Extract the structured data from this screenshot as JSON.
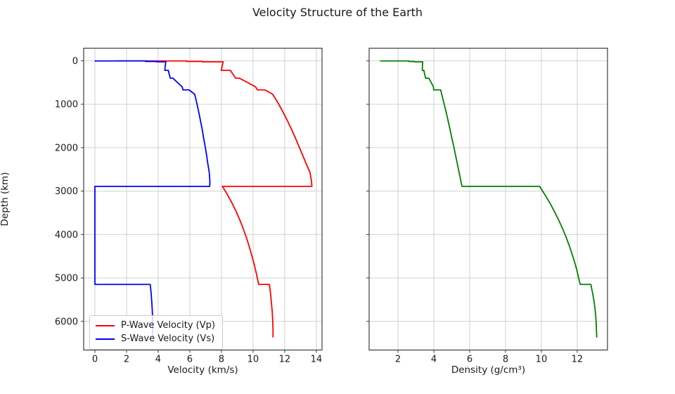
{
  "figure": {
    "title": "Velocity Structure of the Earth",
    "background_color": "#ffffff",
    "text_color": "#1a1a1a",
    "grid_color": "#d0d0d0",
    "spine_color": "#3c3c3c"
  },
  "legend": {
    "items": [
      {
        "label": "P-Wave Velocity (Vp)",
        "color": "#ff0000"
      },
      {
        "label": "S-Wave Velocity (Vs)",
        "color": "#0000ff"
      }
    ]
  },
  "chart_data": [
    {
      "type": "line",
      "title": "",
      "xlabel": "Velocity (km/s)",
      "ylabel": "Depth (km)",
      "xlim": [
        -0.71,
        14.36
      ],
      "ylim": [
        -290,
        6660
      ],
      "y_axis_inverted_depth": true,
      "grid": true,
      "x_ticks": [
        0,
        2,
        4,
        6,
        8,
        10,
        12,
        14
      ],
      "y_ticks": [
        0,
        1000,
        2000,
        3000,
        4000,
        5000,
        6000
      ],
      "show_y_tick_labels": true,
      "legend_position": "lower left",
      "series": [
        {
          "name": "P-Wave Velocity (Vp)",
          "color": "#ff0000",
          "x": [
            1.45,
            1.45,
            5.8,
            5.8,
            6.8,
            6.8,
            8.11,
            8.07,
            8.03,
            7.99,
            8.56,
            8.73,
            8.9,
            9.13,
            9.65,
            10.16,
            10.27,
            10.75,
            11.24,
            11.58,
            11.88,
            12.16,
            12.42,
            12.67,
            12.9,
            13.13,
            13.36,
            13.6,
            13.69,
            13.72,
            8.06,
            8.36,
            8.66,
            8.93,
            9.17,
            9.38,
            9.58,
            9.75,
            9.91,
            10.06,
            10.19,
            10.31,
            10.36,
            11.03,
            11.11,
            11.16,
            11.21,
            11.24,
            11.26,
            11.26
          ],
          "y": [
            0,
            3,
            3,
            15,
            15,
            24.4,
            24.4,
            80,
            150,
            220,
            220,
            310,
            400,
            400,
            500,
            600,
            670,
            670,
            771,
            971,
            1171,
            1371,
            1571,
            1771,
            1971,
            2171,
            2371,
            2571,
            2771,
            2891,
            2891,
            3071,
            3271,
            3471,
            3671,
            3871,
            4071,
            4271,
            4471,
            4671,
            4871,
            5071,
            5149.5,
            5149.5,
            5371,
            5571,
            5771,
            5971,
            6171,
            6371
          ]
        },
        {
          "name": "S-Wave Velocity (Vs)",
          "color": "#0000ff",
          "x": [
            0,
            0,
            3.2,
            3.2,
            3.9,
            3.9,
            4.49,
            4.46,
            4.44,
            4.42,
            4.64,
            4.7,
            4.77,
            4.93,
            5.22,
            5.52,
            5.57,
            5.95,
            6.31,
            6.44,
            6.56,
            6.67,
            6.78,
            6.87,
            6.97,
            7.06,
            7.14,
            7.23,
            7.27,
            7.26,
            0,
            0,
            0,
            0,
            0,
            0,
            0,
            0,
            0,
            0,
            0,
            0,
            0,
            3.5,
            3.56,
            3.6,
            3.63,
            3.65,
            3.66,
            3.67
          ],
          "y": [
            0,
            3,
            3,
            15,
            15,
            24.4,
            24.4,
            80,
            150,
            220,
            220,
            310,
            400,
            400,
            500,
            600,
            670,
            670,
            771,
            971,
            1171,
            1371,
            1571,
            1771,
            1971,
            2171,
            2371,
            2571,
            2771,
            2891,
            2891,
            3071,
            3271,
            3471,
            3671,
            3871,
            4071,
            4271,
            4471,
            4671,
            4871,
            5071,
            5149.5,
            5149.5,
            5371,
            5571,
            5771,
            5971,
            6171,
            6371
          ]
        }
      ]
    },
    {
      "type": "line",
      "title": "",
      "xlabel": "Density (g/cm³)",
      "ylabel": "",
      "xlim": [
        0.39,
        13.69
      ],
      "ylim": [
        -290,
        6660
      ],
      "y_axis_inverted_depth": true,
      "grid": true,
      "x_ticks": [
        2,
        4,
        6,
        8,
        10,
        12
      ],
      "y_ticks": [
        0,
        1000,
        2000,
        3000,
        4000,
        5000,
        6000
      ],
      "show_y_tick_labels": false,
      "series": [
        {
          "name": "Density",
          "color": "#008000",
          "x": [
            1.02,
            1.02,
            2.6,
            2.6,
            2.9,
            2.9,
            3.38,
            3.37,
            3.36,
            3.36,
            3.44,
            3.49,
            3.54,
            3.72,
            3.85,
            3.98,
            3.99,
            4.38,
            4.44,
            4.56,
            4.68,
            4.79,
            4.9,
            5.0,
            5.11,
            5.21,
            5.31,
            5.41,
            5.51,
            5.57,
            9.9,
            10.18,
            10.47,
            10.73,
            10.97,
            11.19,
            11.39,
            11.57,
            11.73,
            11.88,
            12.01,
            12.12,
            12.17,
            12.76,
            12.87,
            12.95,
            13.01,
            13.05,
            13.07,
            13.09
          ],
          "y": [
            0,
            3,
            3,
            15,
            15,
            24.4,
            24.4,
            80,
            150,
            220,
            220,
            310,
            400,
            400,
            500,
            600,
            670,
            670,
            771,
            971,
            1171,
            1371,
            1571,
            1771,
            1971,
            2171,
            2371,
            2571,
            2771,
            2891,
            2891,
            3071,
            3271,
            3471,
            3671,
            3871,
            4071,
            4271,
            4471,
            4671,
            4871,
            5071,
            5149.5,
            5149.5,
            5371,
            5571,
            5771,
            5971,
            6171,
            6371
          ]
        }
      ]
    }
  ]
}
